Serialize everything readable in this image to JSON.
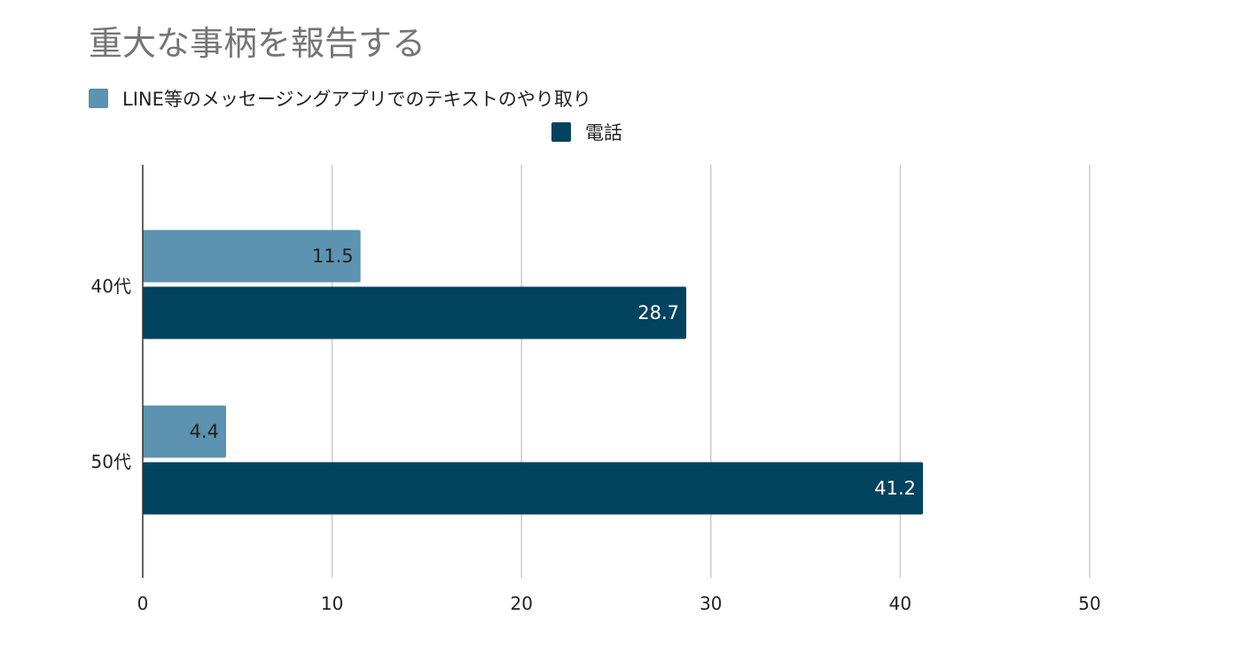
{
  "chart_data": {
    "type": "bar",
    "orientation": "horizontal",
    "title": "重大な事柄を報告する",
    "xlabel": "",
    "ylabel": "",
    "categories": [
      "40代",
      "50代"
    ],
    "series": [
      {
        "name": "LINE等のメッセージングアプリでのテキストのやり取り",
        "color": "#5b93b0",
        "label_color": "#222222",
        "values": [
          11.5,
          4.4
        ],
        "value_labels": [
          "11.5",
          "4.4"
        ]
      },
      {
        "name": "電話",
        "color": "#02435f",
        "label_color": "#ffffff",
        "values": [
          28.7,
          41.2
        ],
        "value_labels": [
          "28.7",
          "41.2"
        ]
      }
    ],
    "xlim": [
      0,
      50
    ],
    "xticks": [
      0,
      10,
      20,
      30,
      40,
      50
    ],
    "xtick_labels": [
      "0",
      "10",
      "20",
      "30",
      "40",
      "50"
    ],
    "grid": true,
    "legend_position": "top"
  }
}
